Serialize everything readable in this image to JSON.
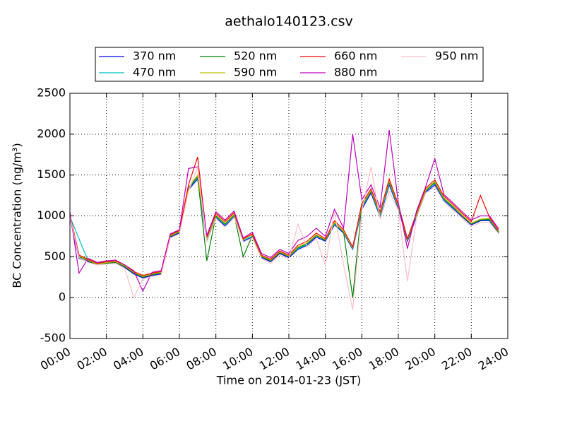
{
  "chart_data": {
    "type": "line",
    "title": "aethalo140123.csv",
    "x_label": "Time on 2014-01-23 (JST)",
    "y_label": "BC Concentration (ng/m³)",
    "xlim": [
      0,
      24
    ],
    "xticks": [
      {
        "value": 0,
        "label": "00:00"
      },
      {
        "value": 2,
        "label": "02:00"
      },
      {
        "value": 4,
        "label": "04:00"
      },
      {
        "value": 6,
        "label": "06:00"
      },
      {
        "value": 8,
        "label": "08:00"
      },
      {
        "value": 10,
        "label": "10:00"
      },
      {
        "value": 12,
        "label": "12:00"
      },
      {
        "value": 14,
        "label": "14:00"
      },
      {
        "value": 16,
        "label": "16:00"
      },
      {
        "value": 18,
        "label": "18:00"
      },
      {
        "value": 20,
        "label": "20:00"
      },
      {
        "value": 22,
        "label": "22:00"
      },
      {
        "value": 24,
        "label": "24:00"
      }
    ],
    "ylim": [
      -500,
      2500
    ],
    "yticks": [
      -500,
      0,
      500,
      1000,
      1500,
      2000,
      2500
    ],
    "grid": true,
    "legend": "top",
    "x": [
      0,
      0.5,
      1,
      1.5,
      2,
      2.5,
      3,
      3.5,
      4,
      4.5,
      5,
      5.5,
      6,
      6.5,
      7,
      7.5,
      8,
      8.5,
      9,
      9.5,
      10,
      10.5,
      11,
      11.5,
      12,
      12.5,
      13,
      13.5,
      14,
      14.5,
      15,
      15.5,
      16,
      16.5,
      17,
      17.5,
      18,
      18.5,
      19,
      19.5,
      20,
      20.5,
      21,
      21.5,
      22,
      22.5,
      23,
      23.5
    ],
    "series": [
      {
        "name": "370 nm",
        "color": "#0000ff",
        "values": [
          980,
          480,
          440,
          410,
          430,
          420,
          370,
          290,
          240,
          270,
          290,
          740,
          790,
          1320,
          1450,
          700,
          980,
          880,
          990,
          690,
          740,
          490,
          440,
          540,
          490,
          590,
          640,
          740,
          690,
          890,
          790,
          590,
          1080,
          1280,
          990,
          1380,
          1090,
          690,
          990,
          1290,
          1380,
          1190,
          1090,
          990,
          890,
          940,
          940,
          790
        ]
      },
      {
        "name": "470 nm",
        "color": "#00bfbf",
        "values": [
          990,
          720,
          450,
          420,
          440,
          430,
          380,
          300,
          250,
          280,
          300,
          750,
          800,
          1330,
          1470,
          710,
          990,
          890,
          1000,
          700,
          750,
          500,
          450,
          550,
          500,
          600,
          650,
          760,
          700,
          900,
          800,
          600,
          1100,
          1300,
          1000,
          1400,
          1100,
          700,
          1000,
          1300,
          1400,
          1200,
          1100,
          1000,
          900,
          950,
          950,
          800
        ]
      },
      {
        "name": "520 nm",
        "color": "#008000",
        "values": [
          1000,
          500,
          450,
          400,
          420,
          430,
          380,
          300,
          250,
          280,
          300,
          750,
          800,
          1340,
          1480,
          450,
          1000,
          900,
          1010,
          500,
          760,
          500,
          450,
          550,
          500,
          610,
          660,
          760,
          700,
          910,
          800,
          0,
          1120,
          1300,
          1020,
          1420,
          1110,
          700,
          1010,
          1310,
          1410,
          1210,
          1110,
          1000,
          900,
          950,
          960,
          800
        ]
      },
      {
        "name": "590 nm",
        "color": "#bfbf00",
        "values": [
          1010,
          510,
          460,
          410,
          430,
          440,
          390,
          310,
          260,
          290,
          310,
          760,
          810,
          1350,
          1500,
          720,
          1010,
          910,
          1020,
          710,
          770,
          510,
          460,
          560,
          510,
          620,
          670,
          770,
          710,
          920,
          810,
          610,
          1130,
          1310,
          1030,
          1430,
          1120,
          710,
          1020,
          1320,
          1420,
          1220,
          1120,
          1010,
          910,
          960,
          970,
          810
        ]
      },
      {
        "name": "660 nm",
        "color": "#ff0000",
        "values": [
          1020,
          520,
          470,
          420,
          440,
          450,
          400,
          320,
          270,
          300,
          320,
          770,
          820,
          1380,
          1720,
          740,
          1030,
          930,
          1040,
          720,
          780,
          520,
          470,
          570,
          520,
          640,
          690,
          790,
          720,
          940,
          830,
          620,
          1150,
          1330,
          1050,
          1450,
          1140,
          720,
          1040,
          1340,
          1440,
          1240,
          1140,
          1030,
          930,
          1250,
          980,
          820
        ]
      },
      {
        "name": "880 nm",
        "color": "#bf00bf",
        "values": [
          1050,
          300,
          480,
          430,
          450,
          460,
          400,
          330,
          80,
          310,
          330,
          780,
          830,
          1580,
          1600,
          760,
          1050,
          950,
          1060,
          730,
          800,
          540,
          490,
          590,
          540,
          700,
          750,
          850,
          750,
          1080,
          850,
          2000,
          1200,
          1380,
          1100,
          2050,
          1160,
          600,
          1060,
          1360,
          1700,
          1260,
          1160,
          1050,
          950,
          1000,
          1000,
          840
        ]
      },
      {
        "name": "950 nm",
        "color": "#ffc0cb",
        "values": [
          1000,
          490,
          430,
          400,
          410,
          420,
          360,
          0,
          230,
          260,
          280,
          730,
          780,
          1300,
          1600,
          680,
          970,
          860,
          980,
          680,
          730,
          480,
          420,
          520,
          470,
          900,
          620,
          720,
          400,
          1050,
          400,
          -150,
          1060,
          1600,
          960,
          1300,
          1070,
          200,
          980,
          1280,
          1360,
          1170,
          1070,
          970,
          870,
          920,
          920,
          780
        ]
      }
    ]
  }
}
